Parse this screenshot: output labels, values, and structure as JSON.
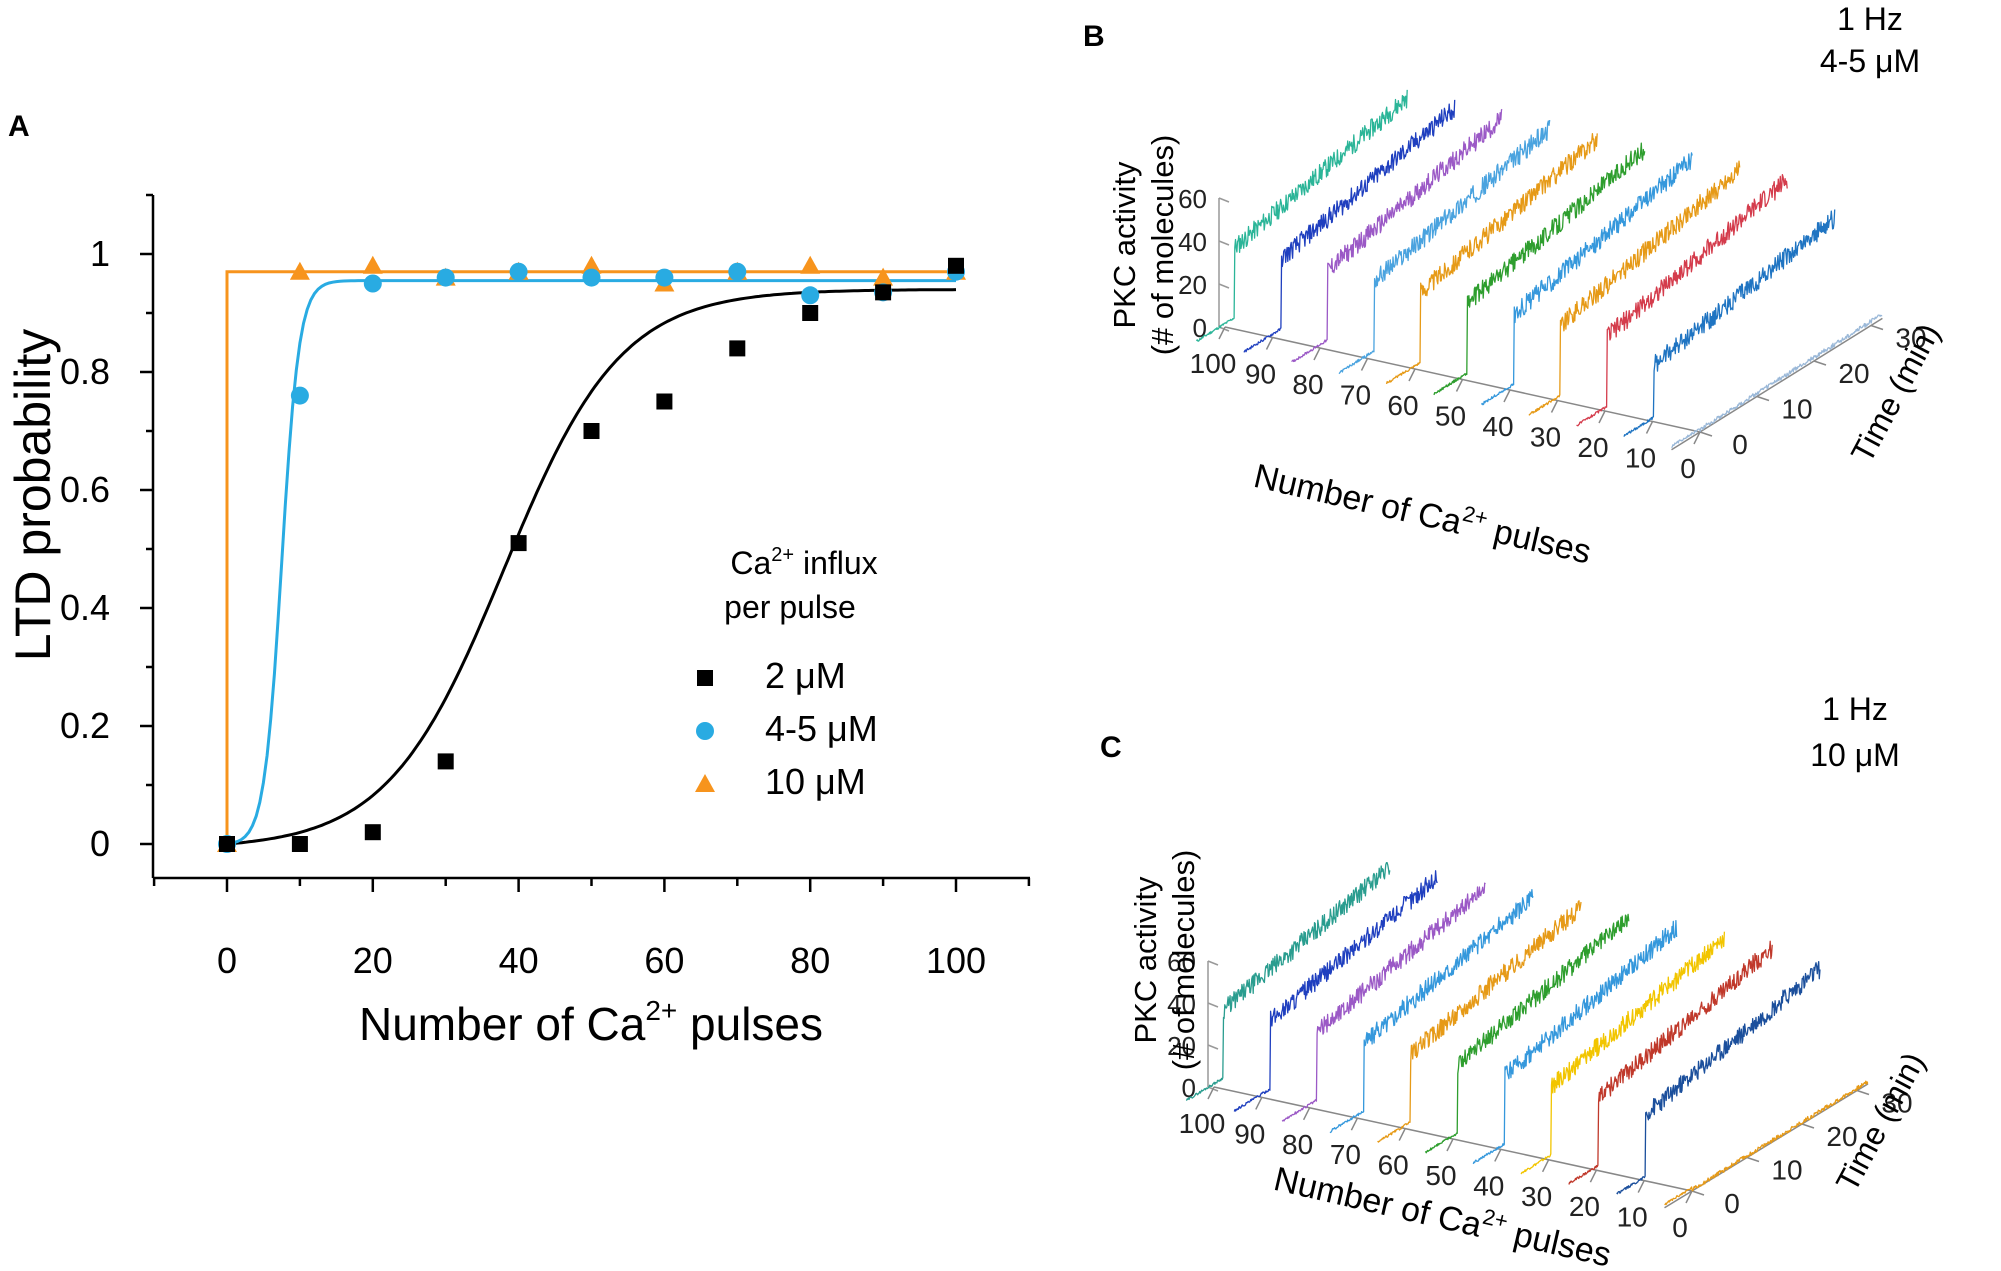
{
  "chart_data": [
    {
      "panel": "A",
      "type": "scatter",
      "xlabel_main": "Number of Ca",
      "xlabel_sup": "2+",
      "xlabel_tail": " pulses",
      "ylabel": "LTD probability",
      "xlim": [
        -10,
        110
      ],
      "ylim": [
        -0.05,
        1.1
      ],
      "x_ticks": [
        0,
        20,
        40,
        60,
        80,
        100
      ],
      "y_ticks": [
        0,
        0.2,
        0.4,
        0.6,
        0.8,
        1
      ],
      "y_tick_labels": [
        "0",
        "0.2",
        "0.4",
        "0.6",
        "0.8",
        "1"
      ],
      "legend": {
        "title_line1_main": "Ca",
        "title_line1_sup": "2+",
        "title_line1_tail": " influx",
        "title_line2": "per pulse",
        "position": "center-right"
      },
      "series": [
        {
          "name": "2 μM",
          "color": "#000000",
          "marker": "square",
          "x": [
            0,
            10,
            20,
            30,
            40,
            50,
            60,
            70,
            80,
            90,
            100
          ],
          "y": [
            0,
            0,
            0.02,
            0.14,
            0.51,
            0.7,
            0.75,
            0.84,
            0.9,
            0.935,
            0.98
          ],
          "fit": {
            "kind": "sigmoid",
            "top": 0.94,
            "x50": 38,
            "slope": 8
          }
        },
        {
          "name": "4-5 μM",
          "color": "#29abe2",
          "marker": "circle",
          "x": [
            0,
            10,
            20,
            30,
            40,
            50,
            60,
            70,
            80,
            90,
            100
          ],
          "y": [
            0,
            0.76,
            0.95,
            0.96,
            0.97,
            0.96,
            0.96,
            0.97,
            0.93,
            0.935,
            0.97
          ],
          "fit": {
            "kind": "sigmoid",
            "top": 0.955,
            "x50": 7.5,
            "slope": 1.2
          }
        },
        {
          "name": "10 μM",
          "color": "#f7941d",
          "marker": "triangle",
          "x": [
            0,
            10,
            20,
            30,
            40,
            50,
            60,
            70,
            80,
            90,
            100
          ],
          "y": [
            0,
            0.97,
            0.98,
            0.96,
            0.97,
            0.98,
            0.95,
            0.97,
            0.98,
            0.96,
            0.97
          ],
          "fit": {
            "kind": "step",
            "top": 0.97,
            "x_step": 0
          }
        }
      ]
    },
    {
      "panel": "B",
      "type": "line",
      "annotation_line1": "1 Hz",
      "annotation_line2": "4-5 μM",
      "zlabel_line1": "PKC activity",
      "zlabel_line2": "(# of molecules)",
      "xlabel_main": "Number of Ca",
      "xlabel_sup": "2+",
      "xlabel_tail": " pulses",
      "ylabel": "Time (min)",
      "z_ticks": [
        0,
        20,
        40,
        60
      ],
      "time_ticks": [
        0,
        10,
        20,
        30
      ],
      "pulse_ticks": [
        100,
        90,
        80,
        70,
        60,
        50,
        40,
        30,
        20,
        10,
        0
      ],
      "series": [
        {
          "pulses": 100,
          "color": "#2bb598",
          "baseline": 1,
          "plateau": 55
        },
        {
          "pulses": 90,
          "color": "#1f3fbf",
          "baseline": 1,
          "plateau": 55
        },
        {
          "pulses": 80,
          "color": "#9b59c6",
          "baseline": 1,
          "plateau": 55
        },
        {
          "pulses": 70,
          "color": "#4aa3df",
          "baseline": 1,
          "plateau": 55
        },
        {
          "pulses": 60,
          "color": "#e69a17",
          "baseline": 1,
          "plateau": 55
        },
        {
          "pulses": 50,
          "color": "#2e9e2e",
          "baseline": 1,
          "plateau": 55
        },
        {
          "pulses": 40,
          "color": "#3598dc",
          "baseline": 1,
          "plateau": 55
        },
        {
          "pulses": 30,
          "color": "#e69a17",
          "baseline": 1,
          "plateau": 55
        },
        {
          "pulses": 20,
          "color": "#d43c4c",
          "baseline": 1,
          "plateau": 55
        },
        {
          "pulses": 10,
          "color": "#1f74c2",
          "baseline": 1,
          "plateau": 42
        },
        {
          "pulses": 0,
          "color": "#9ab8d8",
          "baseline": 1,
          "plateau": 2
        }
      ]
    },
    {
      "panel": "C",
      "type": "line",
      "annotation_line1": "1 Hz",
      "annotation_line2": "10 μM",
      "zlabel_line1": "PKC activity",
      "zlabel_line2": "(# of molecules)",
      "xlabel_main": "Number of Ca",
      "xlabel_sup": "2+",
      "xlabel_tail": " pulses",
      "ylabel": "Time (min)",
      "z_ticks": [
        0,
        20,
        40,
        60
      ],
      "time_ticks": [
        0,
        10,
        20,
        30
      ],
      "pulse_ticks": [
        100,
        90,
        80,
        70,
        60,
        50,
        40,
        30,
        20,
        10,
        0
      ],
      "series": [
        {
          "pulses": 100,
          "color": "#2a9d8f",
          "baseline": 1,
          "plateau": 55
        },
        {
          "pulses": 90,
          "color": "#1f3fbf",
          "baseline": 1,
          "plateau": 55
        },
        {
          "pulses": 80,
          "color": "#9b59c6",
          "baseline": 1,
          "plateau": 55
        },
        {
          "pulses": 70,
          "color": "#3598dc",
          "baseline": 1,
          "plateau": 55
        },
        {
          "pulses": 60,
          "color": "#e69a17",
          "baseline": 1,
          "plateau": 55
        },
        {
          "pulses": 50,
          "color": "#2e9e2e",
          "baseline": 1,
          "plateau": 55
        },
        {
          "pulses": 40,
          "color": "#3598dc",
          "baseline": 1,
          "plateau": 55
        },
        {
          "pulses": 30,
          "color": "#f2c500",
          "baseline": 1,
          "plateau": 55
        },
        {
          "pulses": 20,
          "color": "#c0392b",
          "baseline": 1,
          "plateau": 55
        },
        {
          "pulses": 10,
          "color": "#1b4f9c",
          "baseline": 1,
          "plateau": 50
        },
        {
          "pulses": 0,
          "color": "#e69a17",
          "baseline": 1,
          "plateau": 1
        }
      ]
    }
  ]
}
